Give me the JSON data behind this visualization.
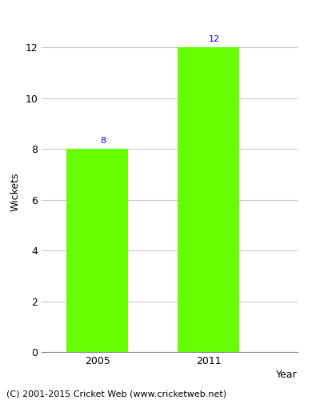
{
  "categories": [
    "2005",
    "2011"
  ],
  "values": [
    8,
    12
  ],
  "bar_color": "#66ff00",
  "xlabel": "Year",
  "ylabel": "Wickets",
  "ylim": [
    0,
    12.6
  ],
  "yticks": [
    0,
    2,
    4,
    6,
    8,
    10,
    12
  ],
  "label_color": "#0000cc",
  "label_fontsize": 8,
  "axis_label_fontsize": 9,
  "tick_fontsize": 9,
  "footer_text": "(C) 2001-2015 Cricket Web (www.cricketweb.net)",
  "footer_fontsize": 8,
  "background_color": "#ffffff",
  "grid_color": "#c8c8c8",
  "bar_width": 0.55,
  "x_positions": [
    1,
    2
  ],
  "xlim": [
    0.5,
    2.8
  ]
}
